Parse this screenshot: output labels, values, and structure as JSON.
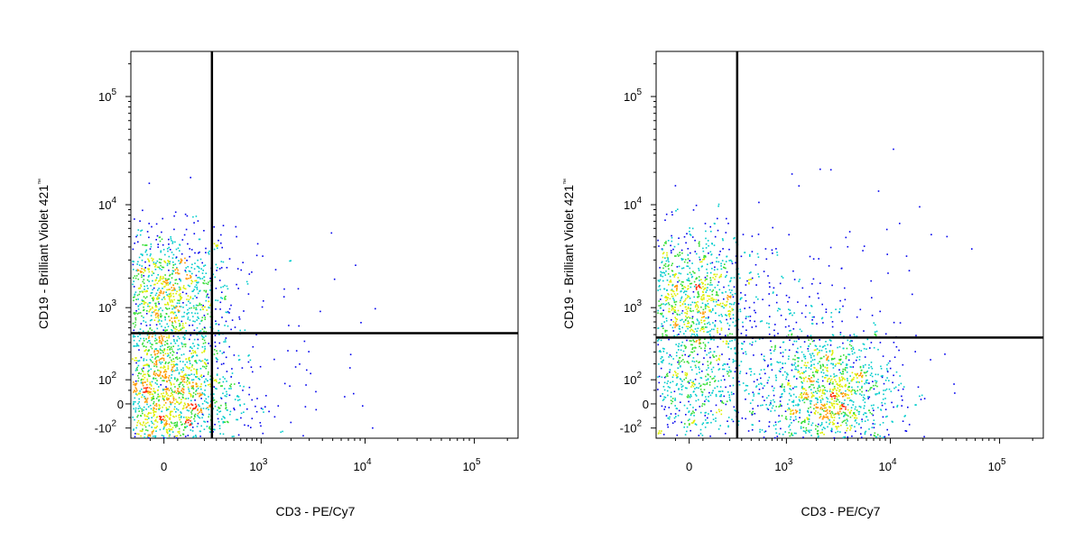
{
  "chart_data": [
    {
      "type": "scatter",
      "xlabel": "CD3 - PE/Cy7",
      "ylabel": "CD19 - Brilliant Violet 421",
      "ylabel_mark": "™",
      "x_ticks": [
        {
          "value": 0,
          "base": "0",
          "exp": ""
        },
        {
          "value": 1000,
          "base": "10",
          "exp": "3"
        },
        {
          "value": 10000,
          "base": "10",
          "exp": "4"
        },
        {
          "value": 100000,
          "base": "10",
          "exp": "5"
        }
      ],
      "y_ticks": [
        {
          "value": -100,
          "base": "-10",
          "exp": "2"
        },
        {
          "value": 0,
          "base": "0",
          "exp": ""
        },
        {
          "value": 100,
          "base": "10",
          "exp": "2"
        },
        {
          "value": 1000,
          "base": "10",
          "exp": "3"
        },
        {
          "value": 10000,
          "base": "10",
          "exp": "4"
        },
        {
          "value": 100000,
          "base": "10",
          "exp": "5"
        }
      ],
      "xlim": [
        -150,
        250000
      ],
      "ylim": [
        -160,
        260000
      ],
      "gates": {
        "x": 260,
        "y": 520
      },
      "populations": [
        {
          "name": "",
          "x": 0,
          "y": 1300,
          "count": 1100
        },
        {
          "name": "",
          "x": 0,
          "y": 25,
          "count": 1500
        },
        {
          "name": "",
          "x": 300,
          "y": 30,
          "count": 60
        },
        {
          "name": "",
          "x": 1500,
          "y": 1500,
          "count": 25
        },
        {
          "name": "",
          "x": 700,
          "y": 40,
          "count": 40
        }
      ]
    },
    {
      "type": "scatter",
      "xlabel": "CD3 - PE/Cy7",
      "ylabel": "CD19 - Brilliant Violet 421",
      "ylabel_mark": "™",
      "x_ticks": [
        {
          "value": 0,
          "base": "0",
          "exp": ""
        },
        {
          "value": 1000,
          "base": "10",
          "exp": "3"
        },
        {
          "value": 10000,
          "base": "10",
          "exp": "4"
        },
        {
          "value": 100000,
          "base": "10",
          "exp": "5"
        }
      ],
      "y_ticks": [
        {
          "value": -100,
          "base": "-10",
          "exp": "2"
        },
        {
          "value": 0,
          "base": "0",
          "exp": ""
        },
        {
          "value": 100,
          "base": "10",
          "exp": "2"
        },
        {
          "value": 1000,
          "base": "10",
          "exp": "3"
        },
        {
          "value": 10000,
          "base": "10",
          "exp": "4"
        },
        {
          "value": 100000,
          "base": "10",
          "exp": "5"
        }
      ],
      "xlim": [
        -150,
        250000
      ],
      "ylim": [
        -160,
        260000
      ],
      "gates": {
        "x": 260,
        "y": 460
      },
      "populations": [
        {
          "name": "",
          "x": 0,
          "y": 1200,
          "count": 1100
        },
        {
          "name": "",
          "x": 0,
          "y": 30,
          "count": 550
        },
        {
          "name": "",
          "x": 2600,
          "y": 30,
          "count": 1300
        },
        {
          "name": "",
          "x": 1500,
          "y": 1300,
          "count": 120
        },
        {
          "name": "",
          "x": 400,
          "y": 150,
          "count": 60
        }
      ]
    }
  ]
}
